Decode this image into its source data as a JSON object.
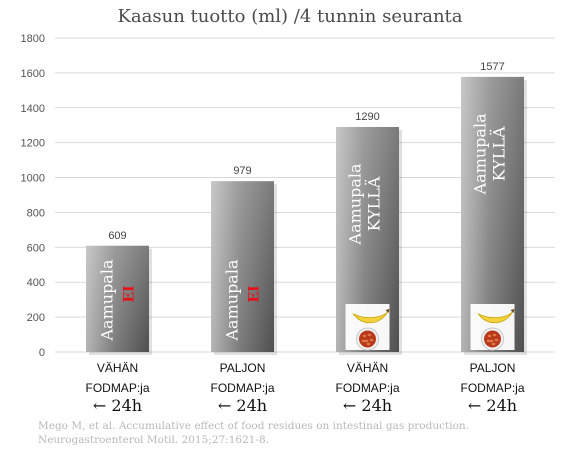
{
  "chart_data": {
    "type": "bar",
    "title": "Kaasun tuotto (ml) /4 tunnin seuranta",
    "ylim": [
      0,
      1800
    ],
    "yticks": [
      0,
      200,
      400,
      600,
      800,
      1000,
      1200,
      1400,
      1600,
      1800
    ],
    "grid": true,
    "categories": [
      {
        "line1": "VÄHÄN",
        "line2": "FODMAP:ja",
        "line3": "← 24h",
        "bar_text1": "Aamupala",
        "bar_text2": "EI",
        "breakfast_icons": false
      },
      {
        "line1": "PALJON",
        "line2": "FODMAP:ja",
        "line3": "← 24h",
        "bar_text1": "Aamupala",
        "bar_text2": "EI",
        "breakfast_icons": false
      },
      {
        "line1": "VÄHÄN",
        "line2": "FODMAP:ja",
        "line3": "← 24h",
        "bar_text1": "Aamupala",
        "bar_text2": "KYLLÄ",
        "breakfast_icons": true
      },
      {
        "line1": "PALJON",
        "line2": "FODMAP:ja",
        "line3": "← 24h",
        "bar_text1": "Aamupala",
        "bar_text2": "KYLLÄ",
        "breakfast_icons": true
      }
    ],
    "values": [
      609,
      979,
      1290,
      1577
    ],
    "value_labels": [
      "609",
      "979",
      "1290",
      "1577"
    ],
    "colors": {
      "bar_light": "#cfcfcf",
      "bar_dark": "#6e6e6e",
      "grid": "#d9d9d9",
      "no_color": "#e8101a",
      "axis_text": "#3a3a3a"
    },
    "breakfast_icon_names": [
      "banana-icon",
      "baked-beans-icon"
    ]
  },
  "reference": {
    "line1": "Mego M, et al. Accumulative effect of food residues on intestinal gas production.",
    "line2": "Neurogastroenterol Motil. 2015;27:1621-8."
  }
}
